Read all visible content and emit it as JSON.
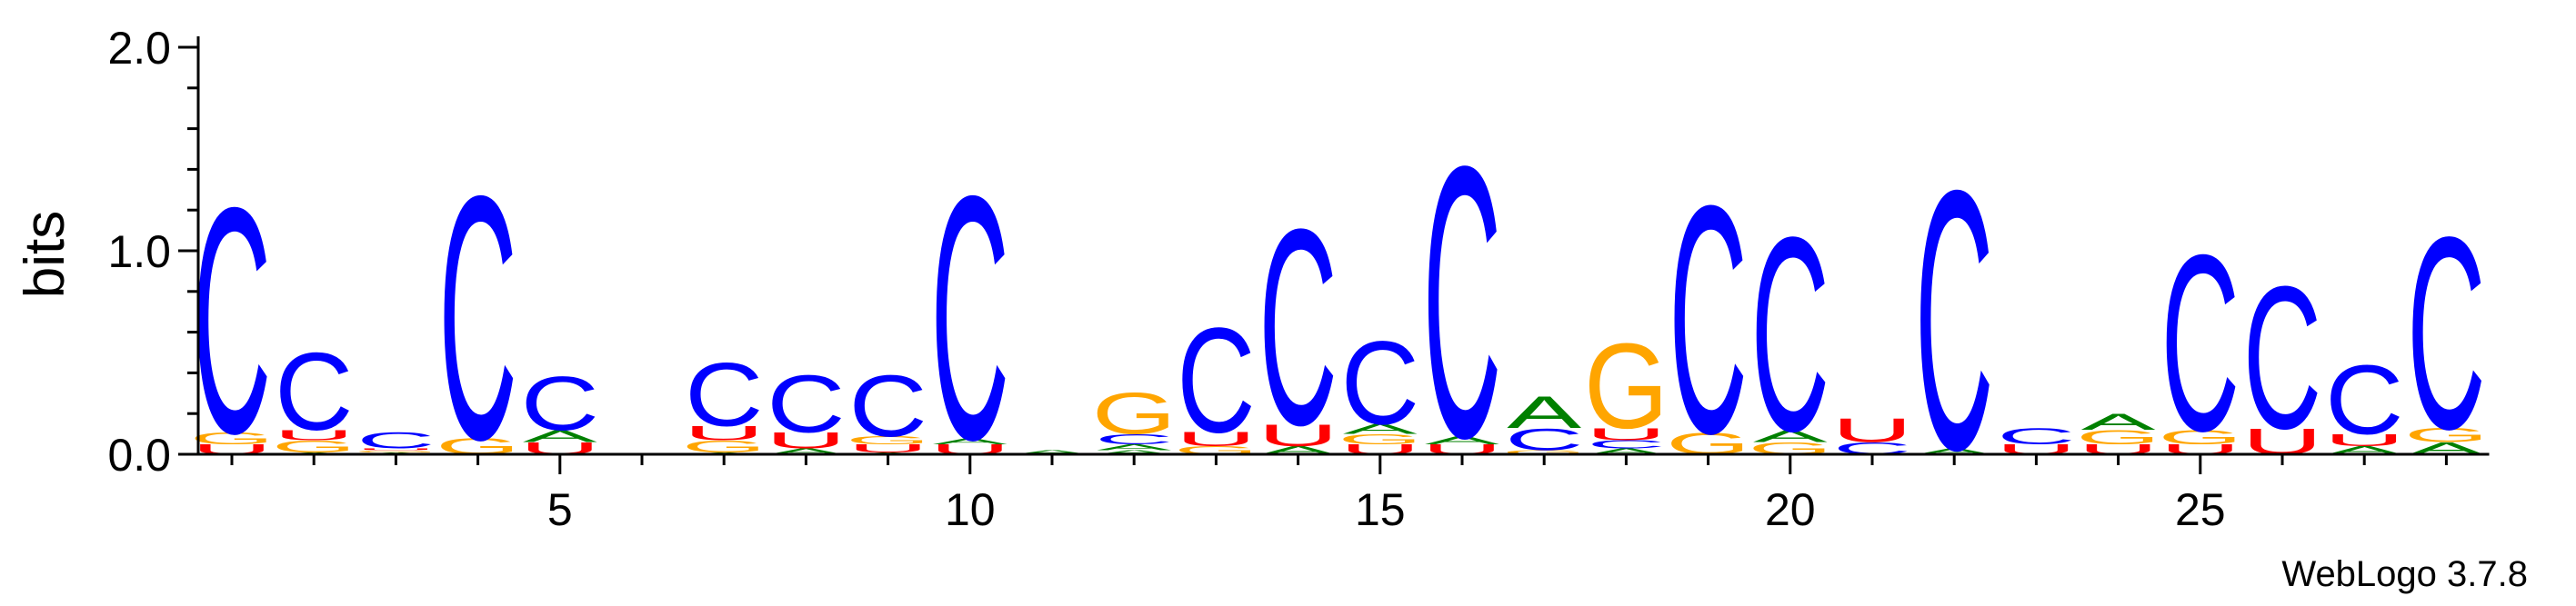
{
  "chart_data": {
    "type": "sequence-logo",
    "ylabel": "bits",
    "ylim": [
      0,
      2.0
    ],
    "y_ticks": [
      "0.0",
      "1.0",
      "2.0"
    ],
    "x_ticks": [
      5,
      10,
      15,
      20,
      25
    ],
    "x_tick_labels": [
      "5",
      "10",
      "15",
      "20",
      "25"
    ],
    "positions": [
      1,
      28
    ],
    "alphabet_colors": {
      "A": "#008000",
      "C": "#0000ff",
      "G": "#ffa500",
      "U": "#ff0000"
    },
    "columns": [
      {
        "pos": 1,
        "stack": [
          [
            "U",
            0.05
          ],
          [
            "G",
            0.06
          ],
          [
            "C",
            1.14
          ]
        ]
      },
      {
        "pos": 2,
        "stack": [
          [
            "A",
            0.01
          ],
          [
            "G",
            0.06
          ],
          [
            "U",
            0.05
          ],
          [
            "C",
            0.39
          ]
        ]
      },
      {
        "pos": 3,
        "stack": [
          [
            "A",
            0.01
          ],
          [
            "G",
            0.01
          ],
          [
            "U",
            0.01
          ],
          [
            "C",
            0.08
          ]
        ]
      },
      {
        "pos": 4,
        "stack": [
          [
            "G",
            0.08
          ],
          [
            "C",
            1.23
          ]
        ]
      },
      {
        "pos": 5,
        "stack": [
          [
            "U",
            0.06
          ],
          [
            "A",
            0.06
          ],
          [
            "C",
            0.27
          ]
        ]
      },
      {
        "pos": 6,
        "stack": []
      },
      {
        "pos": 7,
        "stack": [
          [
            "A",
            0.01
          ],
          [
            "G",
            0.06
          ],
          [
            "U",
            0.07
          ],
          [
            "C",
            0.32
          ]
        ]
      },
      {
        "pos": 8,
        "stack": [
          [
            "A",
            0.03
          ],
          [
            "U",
            0.08
          ],
          [
            "C",
            0.29
          ]
        ]
      },
      {
        "pos": 9,
        "stack": [
          [
            "A",
            0.01
          ],
          [
            "U",
            0.04
          ],
          [
            "G",
            0.04
          ],
          [
            "C",
            0.31
          ]
        ]
      },
      {
        "pos": 10,
        "stack": [
          [
            "U",
            0.05
          ],
          [
            "A",
            0.03
          ],
          [
            "C",
            1.23
          ]
        ]
      },
      {
        "pos": 11,
        "stack": [
          [
            "A",
            0.02
          ]
        ]
      },
      {
        "pos": 12,
        "stack": [
          [
            "A",
            0.02
          ],
          [
            "A",
            0.03
          ],
          [
            "C",
            0.05
          ],
          [
            "G",
            0.21
          ]
        ]
      },
      {
        "pos": 13,
        "stack": [
          [
            "G",
            0.04
          ],
          [
            "U",
            0.07
          ],
          [
            "C",
            0.53
          ]
        ]
      },
      {
        "pos": 14,
        "stack": [
          [
            "A",
            0.04
          ],
          [
            "U",
            0.11
          ],
          [
            "C",
            0.99
          ]
        ]
      },
      {
        "pos": 15,
        "stack": [
          [
            "U",
            0.05
          ],
          [
            "G",
            0.05
          ],
          [
            "A",
            0.05
          ],
          [
            "C",
            0.42
          ]
        ]
      },
      {
        "pos": 16,
        "stack": [
          [
            "U",
            0.05
          ],
          [
            "A",
            0.04
          ],
          [
            "C",
            1.37
          ]
        ]
      },
      {
        "pos": 17,
        "stack": [
          [
            "G",
            0.02
          ],
          [
            "C",
            0.11
          ],
          [
            "A",
            0.16
          ]
        ]
      },
      {
        "pos": 18,
        "stack": [
          [
            "A",
            0.03
          ],
          [
            "C",
            0.04
          ],
          [
            "U",
            0.06
          ],
          [
            "G",
            0.43
          ]
        ]
      },
      {
        "pos": 19,
        "stack": [
          [
            "G",
            0.11
          ],
          [
            "C",
            1.15
          ]
        ]
      },
      {
        "pos": 20,
        "stack": [
          [
            "G",
            0.06
          ],
          [
            "A",
            0.06
          ],
          [
            "C",
            0.98
          ]
        ]
      },
      {
        "pos": 21,
        "stack": [
          [
            "C",
            0.06
          ],
          [
            "U",
            0.12
          ]
        ]
      },
      {
        "pos": 22,
        "stack": [
          [
            "A",
            0.03
          ],
          [
            "C",
            1.31
          ]
        ]
      },
      {
        "pos": 23,
        "stack": [
          [
            "U",
            0.05
          ],
          [
            "C",
            0.08
          ]
        ]
      },
      {
        "pos": 24,
        "stack": [
          [
            "U",
            0.05
          ],
          [
            "G",
            0.07
          ],
          [
            "A",
            0.08
          ]
        ]
      },
      {
        "pos": 25,
        "stack": [
          [
            "U",
            0.05
          ],
          [
            "G",
            0.07
          ],
          [
            "C",
            0.89
          ]
        ]
      },
      {
        "pos": 26,
        "stack": [
          [
            "U",
            0.13
          ],
          [
            "C",
            0.72
          ]
        ]
      },
      {
        "pos": 27,
        "stack": [
          [
            "A",
            0.04
          ],
          [
            "U",
            0.06
          ],
          [
            "C",
            0.35
          ]
        ]
      },
      {
        "pos": 28,
        "stack": [
          [
            "A",
            0.06
          ],
          [
            "G",
            0.07
          ],
          [
            "C",
            0.97
          ]
        ]
      }
    ]
  },
  "credit": "WebLogo 3.7.8"
}
